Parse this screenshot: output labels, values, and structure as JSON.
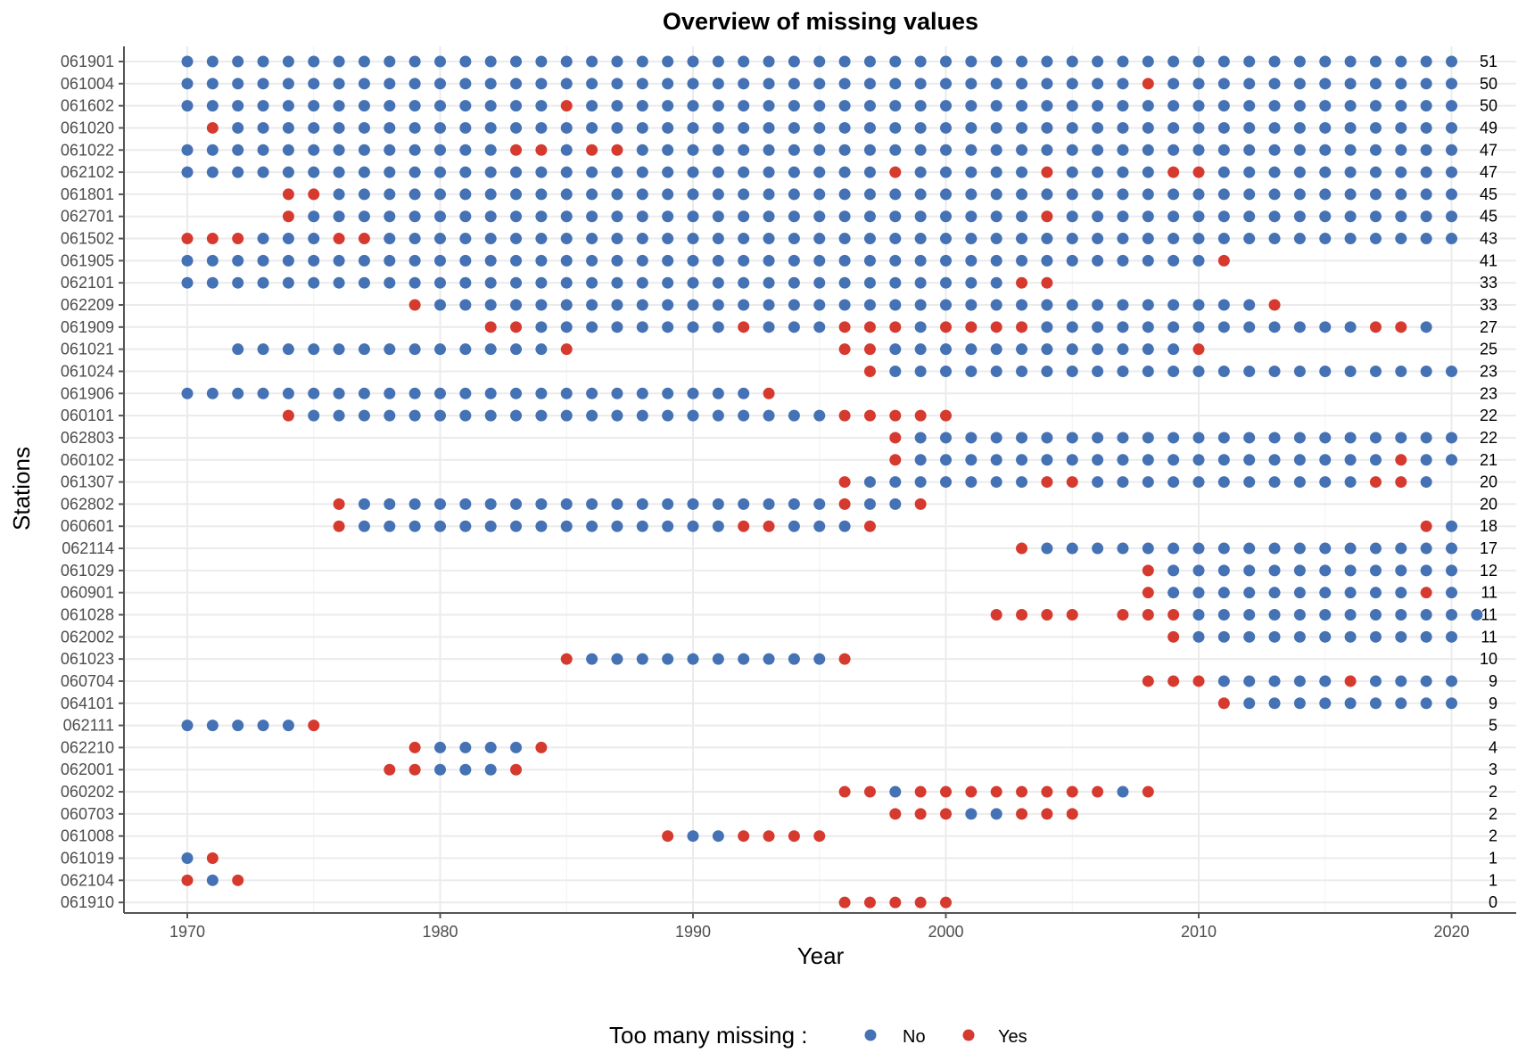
{
  "chart_data": {
    "type": "scatter",
    "title": "Overview of missing values",
    "xlabel": "Year",
    "ylabel": "Stations",
    "xlim": [
      1967.5,
      2022.5
    ],
    "x_ticks": [
      1970,
      1980,
      1990,
      2000,
      2010,
      2020
    ],
    "grid": "on",
    "legend": {
      "title": "Too many missing :",
      "position": "bottom",
      "entries": [
        {
          "key": "N",
          "label": "No",
          "color": "#4472b4"
        },
        {
          "key": "Y",
          "label": "Yes",
          "color": "#d63a2f"
        }
      ]
    },
    "stations": [
      {
        "name": "061901",
        "count": 51,
        "runs": [
          [
            1970,
            "NNNNNNNNNNNNNNNNNNNNNNNNNNNNNNNNNNNNNNNNNNNNNNNNNNN"
          ]
        ]
      },
      {
        "name": "061004",
        "count": 50,
        "runs": [
          [
            1970,
            "NNNNNNNNNNNNNNNNNNNNNNNNNNNNNNNNNNNNNNYNNNNNNNNNNNN"
          ]
        ]
      },
      {
        "name": "061602",
        "count": 50,
        "runs": [
          [
            1970,
            "NNNNNNNNNNNNNNNYNNNNNNNNNNNNNNNNNNNNNNNNNNNNNNNNNNN"
          ]
        ]
      },
      {
        "name": "061020",
        "count": 49,
        "runs": [
          [
            1971,
            "YNNNNNNNNNNNNNNNNNNNNNNNNNNNNNNNNNNNNNNNNNNNNNNNNN"
          ]
        ]
      },
      {
        "name": "061022",
        "count": 47,
        "runs": [
          [
            1970,
            "NNNNNNNNNNNNNYYNYYNNNNNNNNNNNNNNNNNNNNNNNNNNNNNNNNN"
          ]
        ]
      },
      {
        "name": "062102",
        "count": 47,
        "runs": [
          [
            1970,
            "NNNNNNNNNNNNNNNNNNNNNNNNNNNNYNNNNNYNNNNYYNNNNNNNNNN"
          ]
        ]
      },
      {
        "name": "061801",
        "count": 45,
        "runs": [
          [
            1974,
            "YYNNNNNNNNNNNNNNNNNNNNNNNNNNNNNNNNNNNNNNNNNNNNN"
          ]
        ]
      },
      {
        "name": "062701",
        "count": 45,
        "runs": [
          [
            1974,
            "YNNNNNNNNNNNNNNNNNNNNNNNNNNNNNYNNNNNNNNNNNNNNNN"
          ]
        ]
      },
      {
        "name": "061502",
        "count": 43,
        "runs": [
          [
            1970,
            "YYYNNNYYNNNNNNNNNNNNNNNNNNNNNNNNNNNNNNNNNNNNNNNNNNN"
          ]
        ]
      },
      {
        "name": "061905",
        "count": 41,
        "runs": [
          [
            1970,
            "NNNNNNNNNNNNNNNNNNNNNNNNNNNNNNNNNNNNNNNNNY"
          ]
        ]
      },
      {
        "name": "062101",
        "count": 33,
        "runs": [
          [
            1970,
            "NNNNNNNNNNNNNNNNNNNNNNNNNNNNNNNNNYY"
          ]
        ]
      },
      {
        "name": "062209",
        "count": 33,
        "runs": [
          [
            1979,
            "YNNNNNNNNNNNNNNNNNNNNNNNNNNNNNNNNNY"
          ]
        ]
      },
      {
        "name": "061909",
        "count": 27,
        "runs": [
          [
            1982,
            "YYNNNNNNNNYNNNYYYNYYYYNNNNNNNNNNNNNYYN"
          ]
        ]
      },
      {
        "name": "061021",
        "count": 25,
        "runs": [
          [
            1972,
            "NNNNNNNNNNNNNY"
          ],
          [
            1996,
            "YYNNNNNNNNNNNNY"
          ]
        ]
      },
      {
        "name": "061024",
        "count": 23,
        "runs": [
          [
            1997,
            "YNNNNNNNNNNNNNNNNNNNNNNN"
          ]
        ]
      },
      {
        "name": "061906",
        "count": 23,
        "runs": [
          [
            1970,
            "NNNNNNNNNNNNNNNNNNNNNNNY"
          ]
        ]
      },
      {
        "name": "060101",
        "count": 22,
        "runs": [
          [
            1974,
            "YNNNNNNNNNNNNNNNNNNNNNYYYYY"
          ]
        ]
      },
      {
        "name": "062803",
        "count": 22,
        "runs": [
          [
            1998,
            "YNNNNNNNNNNNNNNNNNNNNNN"
          ]
        ]
      },
      {
        "name": "060102",
        "count": 21,
        "runs": [
          [
            1998,
            "YNNNNNNNNNNNNNNNNNNNYNN"
          ]
        ]
      },
      {
        "name": "061307",
        "count": 20,
        "runs": [
          [
            1996,
            "YNNNNNNNYYNNNNNNNNNNNYYN"
          ]
        ]
      },
      {
        "name": "062802",
        "count": 20,
        "runs": [
          [
            1976,
            "YNNNNNNNNNNNNNNNNNNNYNNY"
          ]
        ]
      },
      {
        "name": "060601",
        "count": 18,
        "runs": [
          [
            1976,
            "YNNNNNNNNNNNNNNNYYNNNY"
          ],
          [
            2019,
            "YN"
          ]
        ]
      },
      {
        "name": "062114",
        "count": 17,
        "runs": [
          [
            2003,
            "YNNNNNNNNNNNNNNNNN"
          ]
        ]
      },
      {
        "name": "061029",
        "count": 12,
        "runs": [
          [
            2008,
            "YNNNNNNNNNNNN"
          ]
        ]
      },
      {
        "name": "060901",
        "count": 11,
        "runs": [
          [
            2008,
            "YNNNNNNNNNNYN"
          ]
        ]
      },
      {
        "name": "061028",
        "count": 11,
        "runs": [
          [
            2002,
            "YYYY"
          ],
          [
            2007,
            "YYYNNNNNNNNNNNN"
          ]
        ]
      },
      {
        "name": "062002",
        "count": 11,
        "runs": [
          [
            2009,
            "YNNNNNNNNNNN"
          ]
        ]
      },
      {
        "name": "061023",
        "count": 10,
        "runs": [
          [
            1985,
            "YNNNNNNNNNNY"
          ]
        ]
      },
      {
        "name": "060704",
        "count": 9,
        "runs": [
          [
            2008,
            "YYYNNNNNYNNNN"
          ]
        ]
      },
      {
        "name": "064101",
        "count": 9,
        "runs": [
          [
            2011,
            "YNNNNNNNNN"
          ]
        ]
      },
      {
        "name": "062111",
        "count": 5,
        "runs": [
          [
            1970,
            "NNNNNY"
          ]
        ]
      },
      {
        "name": "062210",
        "count": 4,
        "runs": [
          [
            1979,
            "YNNNNY"
          ]
        ]
      },
      {
        "name": "062001",
        "count": 3,
        "runs": [
          [
            1978,
            "YYNNNY"
          ]
        ]
      },
      {
        "name": "060202",
        "count": 2,
        "runs": [
          [
            1996,
            "YYNYYYYYYYYNY"
          ]
        ]
      },
      {
        "name": "060703",
        "count": 2,
        "runs": [
          [
            1998,
            "YYYNNYYY"
          ]
        ]
      },
      {
        "name": "061008",
        "count": 2,
        "runs": [
          [
            1989,
            "YNNYYYY"
          ]
        ]
      },
      {
        "name": "061019",
        "count": 1,
        "runs": [
          [
            1970,
            "NY"
          ]
        ]
      },
      {
        "name": "062104",
        "count": 1,
        "runs": [
          [
            1970,
            "YNY"
          ]
        ]
      },
      {
        "name": "061910",
        "count": 0,
        "runs": [
          [
            1996,
            "YYYYY"
          ]
        ]
      }
    ]
  }
}
